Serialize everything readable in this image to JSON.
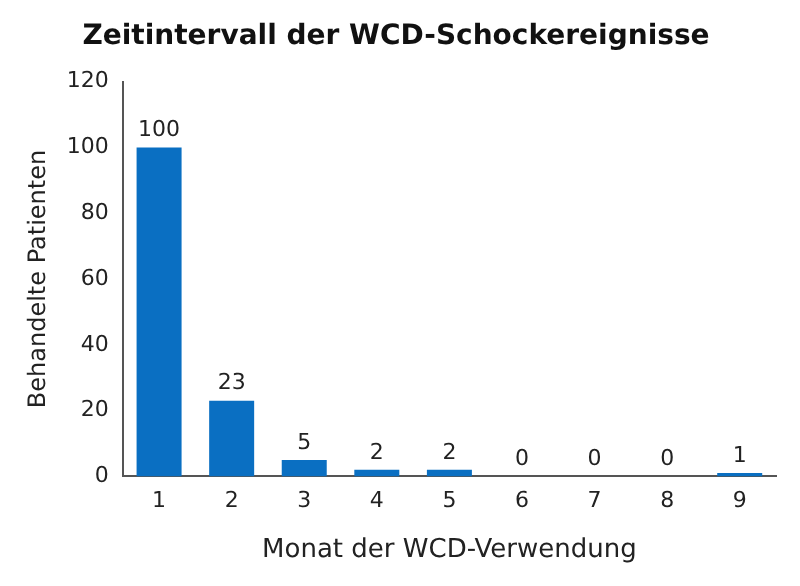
{
  "chart_data": {
    "type": "bar",
    "title": "Zeitintervall der WCD-Schockereignisse",
    "xlabel": "Monat der WCD-Verwendung",
    "ylabel": "Behandelte Patienten",
    "categories": [
      "1",
      "2",
      "3",
      "4",
      "5",
      "6",
      "7",
      "8",
      "9"
    ],
    "series": [
      {
        "color": "#0a6fc2",
        "values": [
          100,
          23,
          5,
          2,
          2,
          0,
          0,
          0,
          1
        ]
      }
    ],
    "ylim": [
      0,
      120
    ],
    "yticks": [
      0,
      20,
      40,
      60,
      80,
      100,
      120
    ],
    "grid": false,
    "legend": false,
    "data_labels": true
  }
}
